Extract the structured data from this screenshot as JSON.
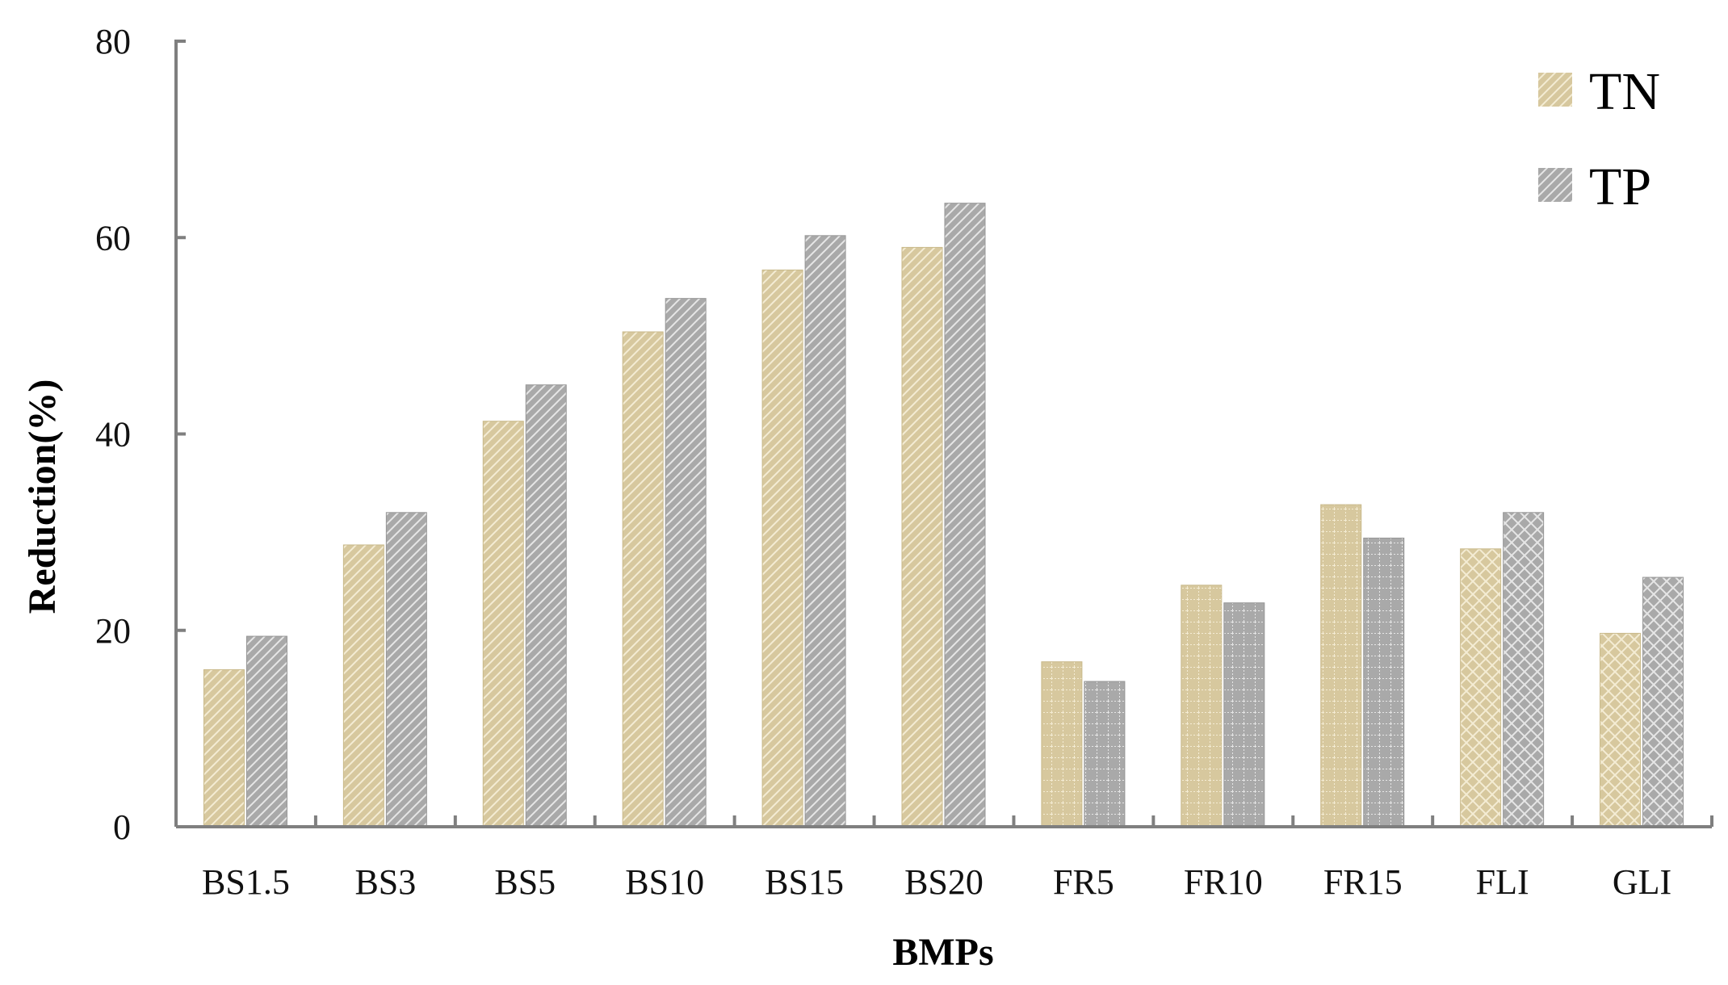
{
  "chart_data": {
    "type": "bar",
    "categories": [
      "BS1.5",
      "BS3",
      "BS5",
      "BS10",
      "BS15",
      "BS20",
      "FR5",
      "FR10",
      "FR15",
      "FLI",
      "GLI"
    ],
    "series": [
      {
        "name": "TN",
        "values": [
          16,
          28.7,
          41.3,
          50.4,
          56.7,
          59,
          16.8,
          24.6,
          32.8,
          28.3,
          19.7
        ]
      },
      {
        "name": "TP",
        "values": [
          19.4,
          32,
          45,
          53.8,
          60.2,
          63.5,
          14.8,
          22.8,
          29.4,
          32,
          25.4
        ]
      }
    ],
    "xlabel": "BMPs",
    "ylabel": "Reduction(%)",
    "ylim": [
      0,
      80
    ],
    "yticks": [
      0,
      20,
      40,
      60,
      80
    ],
    "legend": "top-right",
    "grid": false,
    "colors": {
      "TN": "#d7c89e",
      "TP": "#a9a9a9",
      "axis": "#7f7f7f"
    }
  }
}
